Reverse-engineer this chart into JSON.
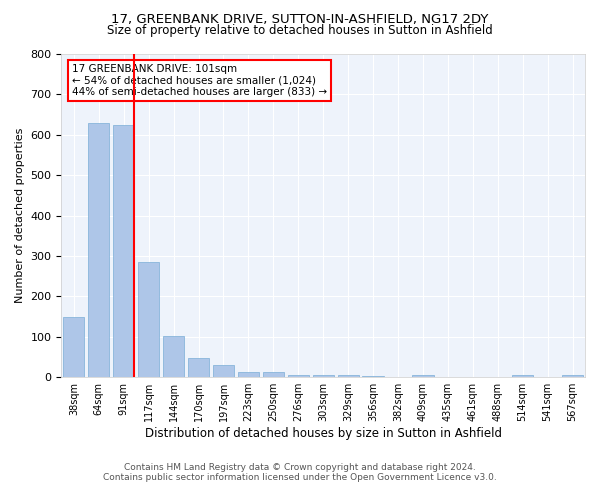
{
  "title1": "17, GREENBANK DRIVE, SUTTON-IN-ASHFIELD, NG17 2DY",
  "title2": "Size of property relative to detached houses in Sutton in Ashfield",
  "xlabel": "Distribution of detached houses by size in Sutton in Ashfield",
  "ylabel": "Number of detached properties",
  "categories": [
    "38sqm",
    "64sqm",
    "91sqm",
    "117sqm",
    "144sqm",
    "170sqm",
    "197sqm",
    "223sqm",
    "250sqm",
    "276sqm",
    "303sqm",
    "329sqm",
    "356sqm",
    "382sqm",
    "409sqm",
    "435sqm",
    "461sqm",
    "488sqm",
    "514sqm",
    "541sqm",
    "567sqm"
  ],
  "values": [
    150,
    630,
    625,
    285,
    103,
    47,
    30,
    12,
    12,
    5,
    5,
    5,
    2,
    0,
    5,
    0,
    0,
    0,
    5,
    0,
    5
  ],
  "bar_color": "#aec6e8",
  "bar_edge_color": "#7aaed6",
  "red_line_x": 2,
  "annotation_text": "17 GREENBANK DRIVE: 101sqm\n← 54% of detached houses are smaller (1,024)\n44% of semi-detached houses are larger (833) →",
  "footer1": "Contains HM Land Registry data © Crown copyright and database right 2024.",
  "footer2": "Contains public sector information licensed under the Open Government Licence v3.0.",
  "ylim": [
    0,
    800
  ],
  "yticks": [
    0,
    100,
    200,
    300,
    400,
    500,
    600,
    700,
    800
  ],
  "bg_color": "#eef3fb",
  "grid_color": "#ffffff",
  "title1_fontsize": 9.5,
  "title2_fontsize": 8.5
}
